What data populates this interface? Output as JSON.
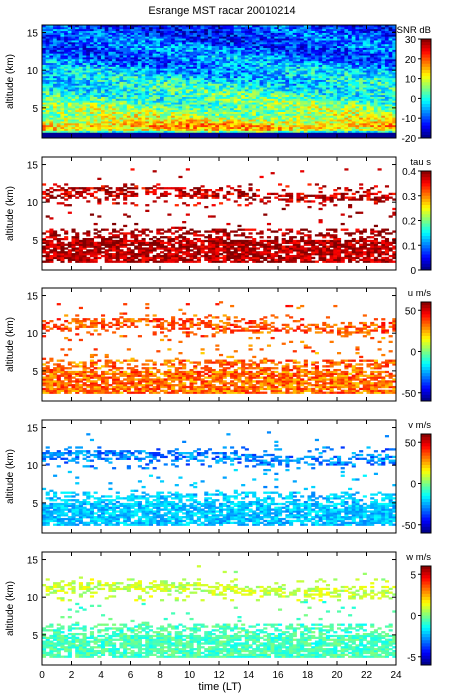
{
  "figure": {
    "title": "Esrange MST racar 20010214",
    "xlabel": "time (LT)",
    "x_ticks": [
      "0",
      "2",
      "4",
      "6",
      "8",
      "10",
      "12",
      "14",
      "16",
      "18",
      "20",
      "22",
      "24"
    ],
    "xlim": [
      0,
      24
    ]
  },
  "chart_data": [
    {
      "type": "heatmap",
      "panel": "snr",
      "ylabel": "altitude (km)",
      "ylim": [
        1,
        16
      ],
      "y_ticks": [
        5,
        10,
        15
      ],
      "colorbar": {
        "label": "SNR dB",
        "range": [
          -20,
          30
        ],
        "ticks": [
          30,
          20,
          10,
          0,
          -10,
          -20
        ]
      },
      "fill": "full",
      "profile": [
        {
          "alt": 1.0,
          "value": -20
        },
        {
          "alt": 1.6,
          "value": -20
        },
        {
          "alt": 2.0,
          "value": 12
        },
        {
          "alt": 2.6,
          "value": 15
        },
        {
          "alt": 3.2,
          "value": 11
        },
        {
          "alt": 4.0,
          "value": 7
        },
        {
          "alt": 5.0,
          "value": 5
        },
        {
          "alt": 7.0,
          "value": 1
        },
        {
          "alt": 9.0,
          "value": -3
        },
        {
          "alt": 11.0,
          "value": -7
        },
        {
          "alt": 13.0,
          "value": -9
        },
        {
          "alt": 15.0,
          "value": -11
        },
        {
          "alt": 16.0,
          "value": -12
        }
      ]
    },
    {
      "type": "heatmap",
      "panel": "tau",
      "ylabel": "altitude (km)",
      "ylim": [
        1,
        16
      ],
      "y_ticks": [
        5,
        10,
        15
      ],
      "colorbar": {
        "label": "tau s",
        "range": [
          0,
          0.4
        ],
        "ticks": [
          "0.4",
          "0.3",
          "0.2",
          "0.1",
          "0"
        ]
      },
      "fill": "sparse",
      "lower_layer": {
        "alt_range": [
          2,
          6.5
        ],
        "value": 0.38,
        "spread": 0.04
      },
      "upper_layer": {
        "alt_range": [
          9.5,
          12.5
        ],
        "value": 0.37,
        "spread": 0.04
      }
    },
    {
      "type": "heatmap",
      "panel": "u",
      "ylabel": "altitude (km)",
      "ylim": [
        1,
        16
      ],
      "y_ticks": [
        5,
        10,
        15
      ],
      "colorbar": {
        "label": "u m/s",
        "range": [
          -60,
          60
        ],
        "ticks": [
          "50",
          "0",
          "-50"
        ]
      },
      "fill": "sparse",
      "lower_layer": {
        "alt_range": [
          2,
          6.5
        ],
        "value": 32,
        "spread": 12
      },
      "upper_layer": {
        "alt_range": [
          9.5,
          12.5
        ],
        "value": 35,
        "spread": 10
      }
    },
    {
      "type": "heatmap",
      "panel": "v",
      "ylabel": "altitude (km)",
      "ylim": [
        1,
        16
      ],
      "y_ticks": [
        5,
        10,
        15
      ],
      "colorbar": {
        "label": "v m/s",
        "range": [
          -60,
          60
        ],
        "ticks": [
          "50",
          "0",
          "-50"
        ]
      },
      "fill": "sparse",
      "lower_layer": {
        "alt_range": [
          2,
          6.5
        ],
        "value": -22,
        "spread": 8
      },
      "upper_layer": {
        "alt_range": [
          9.5,
          12.5
        ],
        "value": -30,
        "spread": 10
      }
    },
    {
      "type": "heatmap",
      "panel": "w",
      "ylabel": "altitude (km)",
      "ylim": [
        1,
        16
      ],
      "y_ticks": [
        5,
        10,
        15
      ],
      "colorbar": {
        "label": "w m/s",
        "range": [
          -6,
          6
        ],
        "ticks": [
          "5",
          "0",
          "-5"
        ]
      },
      "fill": "sparse",
      "lower_layer": {
        "alt_range": [
          2,
          6.5
        ],
        "value": -0.7,
        "spread": 0.8
      },
      "upper_layer": {
        "alt_range": [
          9.5,
          12.5
        ],
        "value": 0.8,
        "spread": 0.8
      }
    }
  ]
}
